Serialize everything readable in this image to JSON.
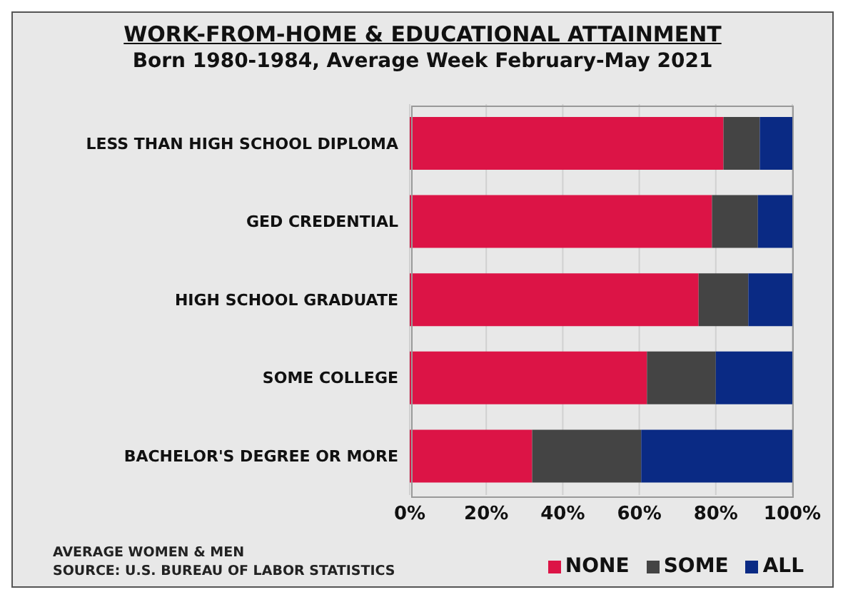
{
  "chart_data": {
    "type": "bar",
    "title": "WORK-FROM-HOME & EDUCATIONAL ATTAINMENT",
    "subtitle": "Born 1980-1984, Average Week February-May 2021",
    "categories": [
      "LESS THAN HIGH SCHOOL DIPLOMA",
      "GED CREDENTIAL",
      "HIGH SCHOOL GRADUATE",
      "SOME COLLEGE",
      "BACHELOR'S DEGREE OR MORE"
    ],
    "series": [
      {
        "name": "NONE",
        "color": "#dc1446",
        "values": [
          82,
          79,
          75.5,
          62,
          32
        ]
      },
      {
        "name": "SOME",
        "color": "#444444",
        "values": [
          9.5,
          12,
          13,
          18,
          28.5
        ]
      },
      {
        "name": "ALL",
        "color": "#0a2a84",
        "values": [
          8.5,
          9,
          11.5,
          20,
          39.5
        ]
      }
    ],
    "orientation": "horizontal",
    "stacked": true,
    "xlim": [
      0,
      100
    ],
    "xticks": [
      {
        "value": 0,
        "label": "0%"
      },
      {
        "value": 20,
        "label": "20%"
      },
      {
        "value": 40,
        "label": "40%"
      },
      {
        "value": 60,
        "label": "60%"
      },
      {
        "value": 80,
        "label": "80%"
      },
      {
        "value": 100,
        "label": "100%"
      }
    ],
    "grid": "x",
    "legend": "bottom right",
    "annotations": [
      "AVERAGE WOMEN & MEN",
      "SOURCE:  U.S. BUREAU OF LABOR STATISTICS"
    ]
  }
}
